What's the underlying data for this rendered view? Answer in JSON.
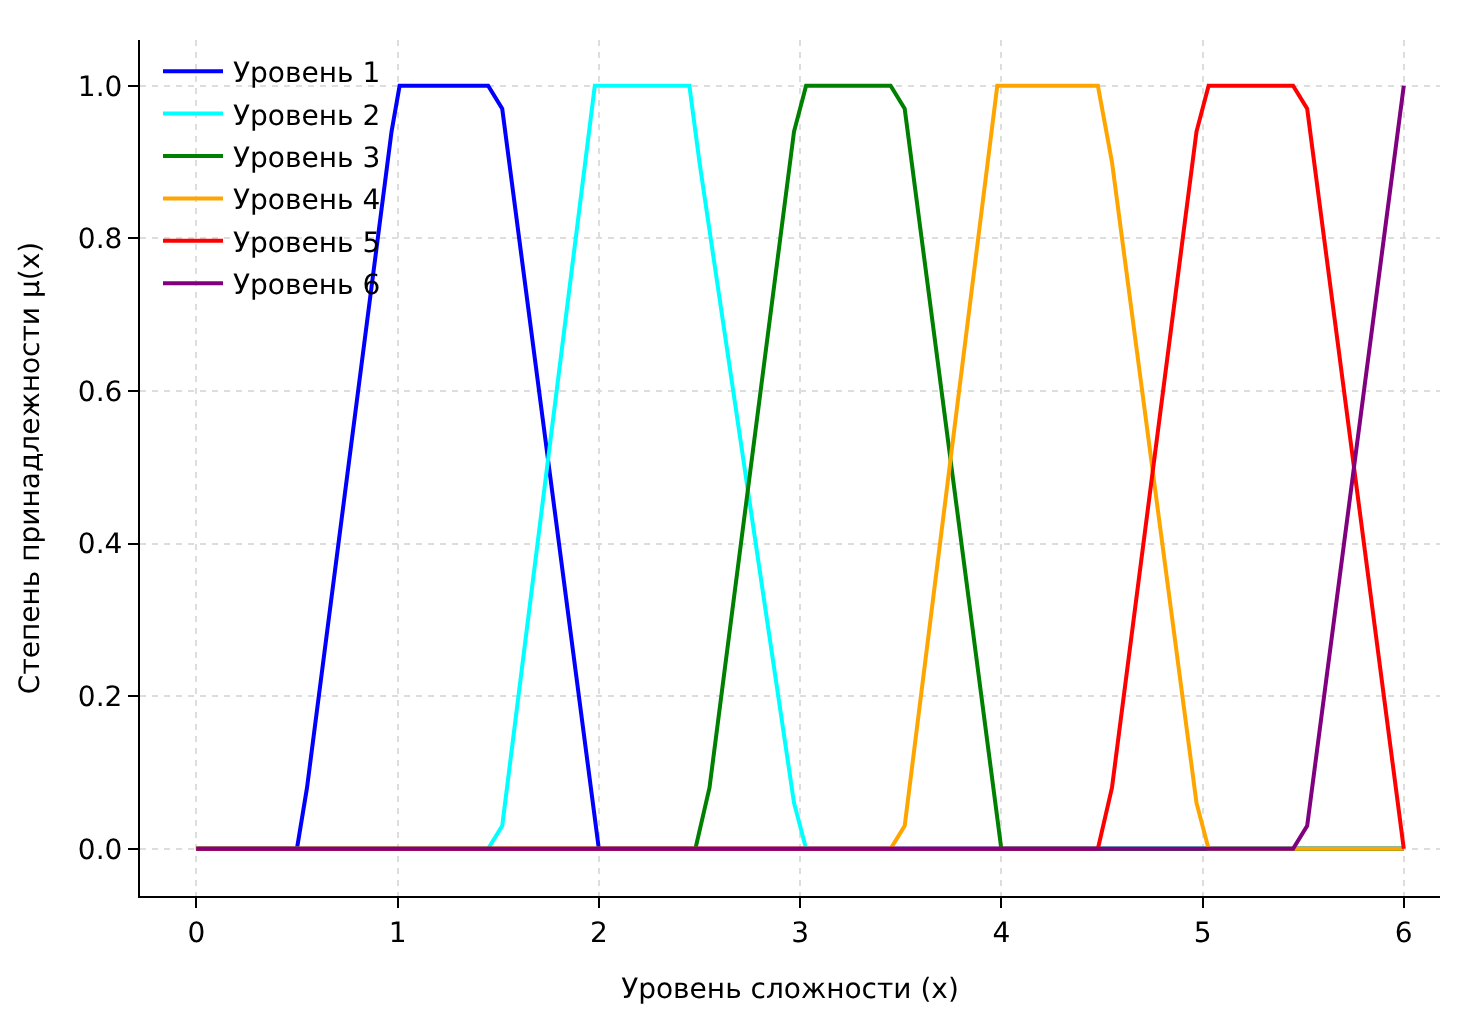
{
  "chart_data": {
    "type": "line",
    "xlabel": "Уровень сложности (x)",
    "ylabel": "Степень принадлежности μ(x)",
    "xlim": [
      -0.28,
      6.18
    ],
    "ylim": [
      -0.062,
      1.06
    ],
    "xticks": [
      0,
      1,
      2,
      3,
      4,
      5,
      6
    ],
    "yticks": [
      {
        "value": 0,
        "label": "0.0"
      },
      {
        "value": 0.2,
        "label": "0.2"
      },
      {
        "value": 0.4,
        "label": "0.4"
      },
      {
        "value": 0.6,
        "label": "0.6"
      },
      {
        "value": 0.8,
        "label": "0.8"
      },
      {
        "value": 1,
        "label": "1.0"
      }
    ],
    "grid": true,
    "legend": "top left",
    "marker": "none",
    "line_style": "solid",
    "series": [
      {
        "name": "Уровень 1",
        "color": "#0000ff",
        "x": [
          0,
          0.5,
          0.55,
          0.97,
          1.01,
          1.45,
          1.52,
          2.0,
          6
        ],
        "values": [
          0,
          0,
          0.08,
          0.94,
          1,
          1,
          0.97,
          0,
          0
        ]
      },
      {
        "name": "Уровень 2",
        "color": "#00ffff",
        "x": [
          0,
          1.45,
          1.52,
          1.98,
          2.45,
          2.5,
          2.97,
          3.03,
          6
        ],
        "values": [
          0,
          0,
          0.03,
          1,
          1,
          0.9,
          0.06,
          0,
          0
        ]
      },
      {
        "name": "Уровень 3",
        "color": "#008000",
        "x": [
          0,
          2.48,
          2.55,
          2.97,
          3.03,
          3.45,
          3.52,
          4.0,
          6
        ],
        "values": [
          0,
          0,
          0.08,
          0.94,
          1,
          1,
          0.97,
          0,
          0
        ]
      },
      {
        "name": "Уровень 4",
        "color": "#ffa500",
        "x": [
          0,
          3.45,
          3.52,
          3.98,
          4.48,
          4.55,
          4.97,
          5.03,
          6
        ],
        "values": [
          0,
          0,
          0.03,
          1,
          1,
          0.9,
          0.06,
          0,
          0
        ]
      },
      {
        "name": "Уровень 5",
        "color": "#ff0000",
        "x": [
          0,
          4.48,
          4.55,
          4.97,
          5.03,
          5.45,
          5.52,
          6.0
        ],
        "values": [
          0,
          0,
          0.08,
          0.94,
          1,
          1,
          0.97,
          0
        ]
      },
      {
        "name": "Уровень 6",
        "color": "#800080",
        "x": [
          0,
          5.45,
          5.52,
          6.0
        ],
        "values": [
          0,
          0,
          0.03,
          1
        ]
      }
    ]
  }
}
